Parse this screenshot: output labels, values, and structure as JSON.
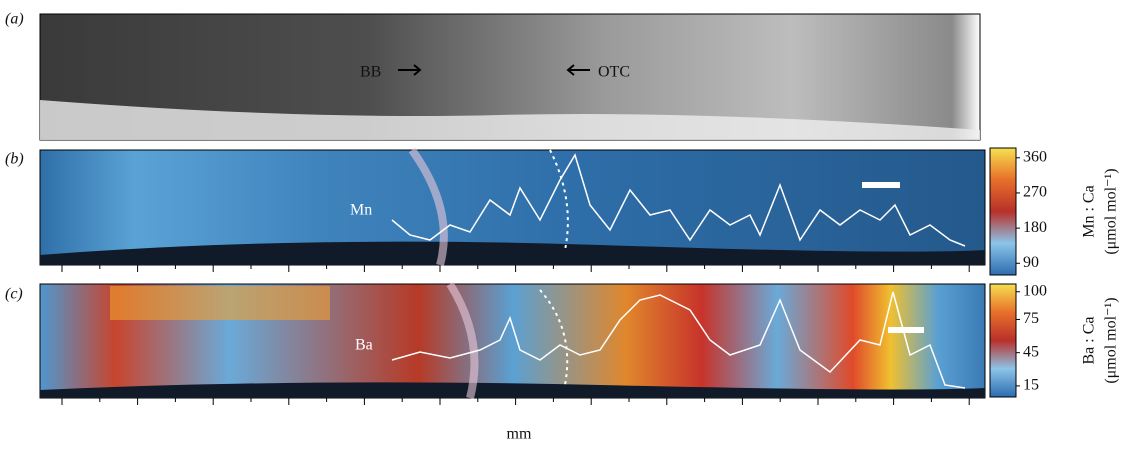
{
  "panels": [
    {
      "label": "(a)",
      "annotations": [
        "BB",
        "OTC"
      ]
    },
    {
      "label": "(b)",
      "trace_label": "Mn",
      "colorbar": {
        "title": "Mn : Ca",
        "unit": "(μmol mol⁻¹)",
        "lim": [
          60,
          385
        ],
        "ticks": [
          90,
          180,
          270,
          360
        ]
      }
    },
    {
      "label": "(c)",
      "trace_label": "Ba",
      "colorbar": {
        "title": "Ba : Ca",
        "unit": "(μmol mol⁻¹)",
        "lim": [
          5,
          107
        ],
        "ticks": [
          15,
          45,
          75,
          100
        ]
      }
    }
  ],
  "x_axis_label": "mm"
}
